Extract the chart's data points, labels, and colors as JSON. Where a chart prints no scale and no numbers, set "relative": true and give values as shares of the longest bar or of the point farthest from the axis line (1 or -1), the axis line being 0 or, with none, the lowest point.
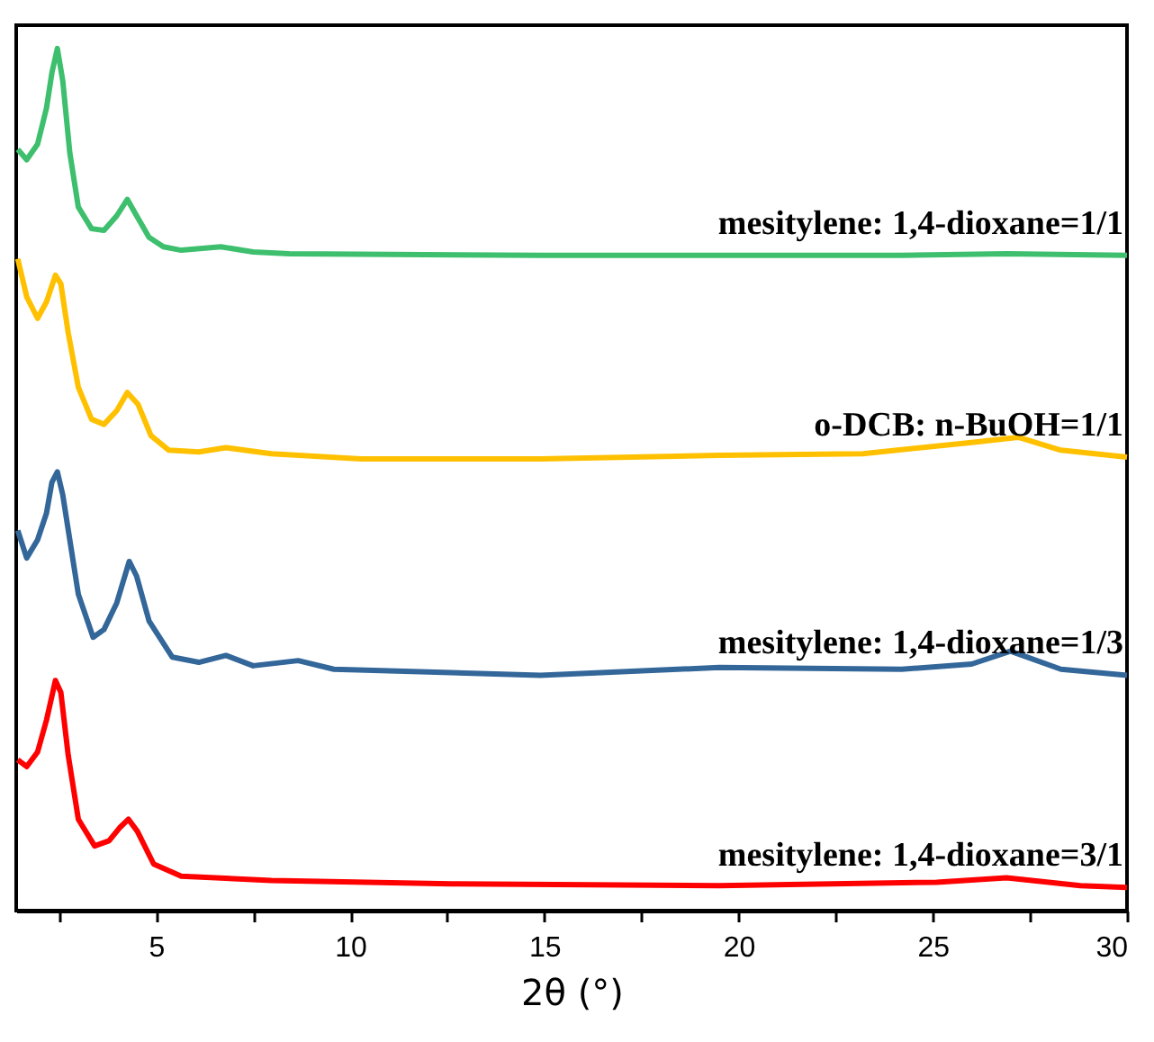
{
  "chart_data": {
    "type": "line",
    "xlabel": "2θ (°)",
    "relative": true,
    "grid": false,
    "marker": "none",
    "line_style": "solid",
    "xlim": [
      1.4,
      30
    ],
    "xticks": [
      {
        "value": 2.5,
        "label": null
      },
      5,
      {
        "value": 7.5,
        "label": null
      },
      10,
      {
        "value": 12.5,
        "label": null
      },
      15,
      {
        "value": 17.5,
        "label": null
      },
      20,
      {
        "value": 22.5,
        "label": null
      },
      25,
      {
        "value": 27.5,
        "label": null
      },
      30
    ],
    "series": [
      {
        "name": "mesitylene: 1,4-dioxane=1/1",
        "color": "#3dbf6e",
        "x": [
          1.44,
          1.67,
          1.95,
          2.18,
          2.32,
          2.46,
          2.6,
          2.78,
          3.0,
          3.34,
          3.66,
          3.99,
          4.26,
          4.5,
          4.82,
          5.19,
          5.65,
          6.67,
          7.5,
          8.43,
          14.9,
          24.2,
          26.9,
          30
        ],
        "values": [
          0.883,
          0.871,
          0.889,
          0.931,
          0.972,
          1.0,
          0.962,
          0.879,
          0.816,
          0.791,
          0.789,
          0.806,
          0.825,
          0.806,
          0.781,
          0.77,
          0.766,
          0.77,
          0.764,
          0.762,
          0.76,
          0.76,
          0.762,
          0.76
        ]
      },
      {
        "name": "o-DCB: n-BuOH=1/1",
        "color": "#ffc000",
        "x": [
          1.44,
          1.67,
          1.95,
          2.18,
          2.41,
          2.55,
          2.74,
          3.0,
          3.34,
          3.66,
          3.99,
          4.26,
          4.54,
          4.87,
          5.33,
          6.1,
          6.8,
          7.97,
          10.28,
          14.9,
          19.5,
          23.2,
          26.0,
          27.2,
          28.3,
          30
        ],
        "values": [
          0.756,
          0.712,
          0.687,
          0.706,
          0.737,
          0.727,
          0.67,
          0.607,
          0.57,
          0.564,
          0.58,
          0.601,
          0.587,
          0.551,
          0.534,
          0.532,
          0.537,
          0.53,
          0.524,
          0.524,
          0.528,
          0.53,
          0.543,
          0.549,
          0.534,
          0.526
        ]
      },
      {
        "name": "mesitylene: 1,4-dioxane=1/3",
        "color": "#336699",
        "x": [
          1.44,
          1.67,
          1.95,
          2.18,
          2.32,
          2.46,
          2.6,
          2.78,
          3.0,
          3.38,
          3.66,
          3.99,
          4.31,
          4.5,
          4.82,
          5.42,
          6.1,
          6.8,
          7.5,
          8.66,
          9.58,
          11.2,
          14.9,
          19.5,
          24.2,
          26.0,
          27.0,
          28.3,
          30
        ],
        "values": [
          0.441,
          0.409,
          0.43,
          0.461,
          0.497,
          0.509,
          0.482,
          0.43,
          0.367,
          0.317,
          0.326,
          0.357,
          0.405,
          0.388,
          0.336,
          0.294,
          0.288,
          0.296,
          0.284,
          0.29,
          0.28,
          0.278,
          0.273,
          0.282,
          0.28,
          0.286,
          0.301,
          0.28,
          0.273
        ]
      },
      {
        "name": "mesitylene: 1,4-dioxane=3/1",
        "color": "#ff0000",
        "x": [
          1.44,
          1.67,
          1.95,
          2.18,
          2.41,
          2.55,
          2.74,
          3.0,
          3.42,
          3.79,
          4.06,
          4.29,
          4.52,
          4.94,
          5.65,
          7.97,
          12.6,
          19.5,
          25.1,
          26.9,
          28.8,
          30
        ],
        "values": [
          0.175,
          0.167,
          0.184,
          0.221,
          0.267,
          0.253,
          0.18,
          0.106,
          0.075,
          0.081,
          0.096,
          0.106,
          0.092,
          0.054,
          0.04,
          0.035,
          0.031,
          0.029,
          0.033,
          0.038,
          0.029,
          0.027
        ]
      }
    ]
  }
}
